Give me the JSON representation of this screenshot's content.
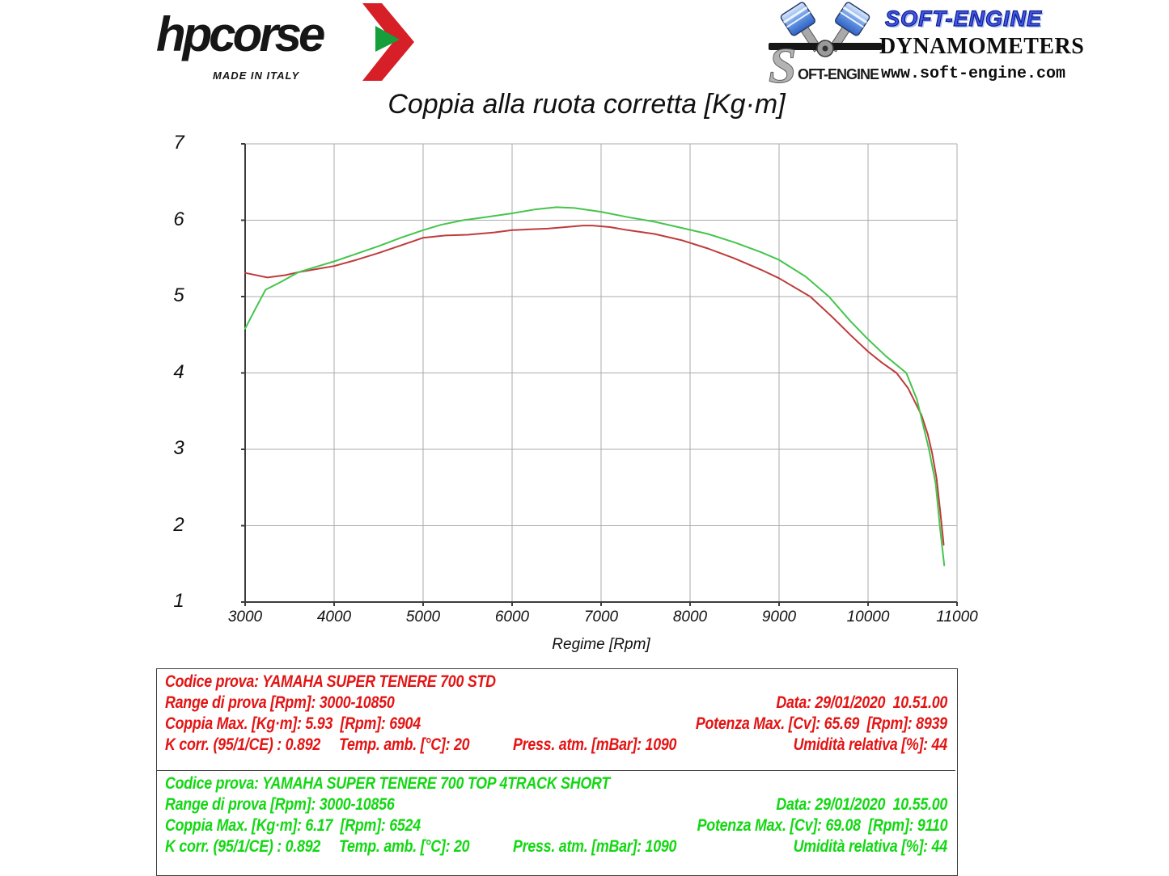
{
  "header": {
    "hpcorse": {
      "wordmark": "hpcorse",
      "made_in_italy": "MADE IN ITALY",
      "arrow_red": "#d61f26",
      "arrow_green": "#169e3a"
    },
    "softengine": {
      "logo_s": "S",
      "logo_rest": "OFT-ENGINE",
      "brand": "SOFT-ENGINE",
      "subtitle": "DYNAMOMETERS",
      "url": "www.soft-engine.com",
      "brand_color": "#4257e8"
    }
  },
  "title": "Coppia alla ruota corretta [Kg·m]",
  "chart_data": {
    "type": "line",
    "title": "Coppia alla ruota corretta [Kg·m]",
    "xlabel": "Regime [Rpm]",
    "ylabel": "",
    "xlim": [
      3000,
      11000
    ],
    "ylim": [
      1,
      7
    ],
    "x_ticks": [
      3000,
      4000,
      5000,
      6000,
      7000,
      8000,
      9000,
      10000,
      11000
    ],
    "y_ticks": [
      1,
      2,
      3,
      4,
      5,
      6,
      7
    ],
    "grid": true,
    "grid_color": "#ababab",
    "axis_color": "#3c3c3c",
    "legend_position": "none",
    "series": [
      {
        "name": "YAMAHA SUPER TENERE 700 STD",
        "color": "#bf3b3b",
        "points": [
          [
            3000,
            5.31
          ],
          [
            3250,
            5.25
          ],
          [
            3450,
            5.28
          ],
          [
            3600,
            5.32
          ],
          [
            3800,
            5.36
          ],
          [
            4000,
            5.4
          ],
          [
            4250,
            5.48
          ],
          [
            4500,
            5.57
          ],
          [
            4750,
            5.67
          ],
          [
            5000,
            5.77
          ],
          [
            5250,
            5.8
          ],
          [
            5500,
            5.81
          ],
          [
            5800,
            5.84
          ],
          [
            6000,
            5.87
          ],
          [
            6200,
            5.88
          ],
          [
            6400,
            5.89
          ],
          [
            6600,
            5.91
          ],
          [
            6800,
            5.93
          ],
          [
            6904,
            5.93
          ],
          [
            7100,
            5.91
          ],
          [
            7300,
            5.87
          ],
          [
            7600,
            5.82
          ],
          [
            7900,
            5.74
          ],
          [
            8200,
            5.63
          ],
          [
            8500,
            5.5
          ],
          [
            8800,
            5.35
          ],
          [
            9000,
            5.24
          ],
          [
            9350,
            5.0
          ],
          [
            9600,
            4.73
          ],
          [
            9800,
            4.5
          ],
          [
            10000,
            4.28
          ],
          [
            10150,
            4.14
          ],
          [
            10320,
            4.0
          ],
          [
            10450,
            3.8
          ],
          [
            10600,
            3.45
          ],
          [
            10670,
            3.2
          ],
          [
            10720,
            2.95
          ],
          [
            10770,
            2.62
          ],
          [
            10810,
            2.2
          ],
          [
            10850,
            1.75
          ]
        ]
      },
      {
        "name": "YAMAHA SUPER TENERE 700 TOP 4TRACK SHORT",
        "color": "#44c54c",
        "points": [
          [
            3000,
            4.58
          ],
          [
            3120,
            4.85
          ],
          [
            3230,
            5.09
          ],
          [
            3400,
            5.19
          ],
          [
            3600,
            5.32
          ],
          [
            3800,
            5.39
          ],
          [
            4000,
            5.46
          ],
          [
            4250,
            5.56
          ],
          [
            4500,
            5.66
          ],
          [
            4750,
            5.77
          ],
          [
            5000,
            5.87
          ],
          [
            5200,
            5.94
          ],
          [
            5450,
            6.0
          ],
          [
            5700,
            6.04
          ],
          [
            6000,
            6.09
          ],
          [
            6250,
            6.14
          ],
          [
            6500,
            6.17
          ],
          [
            6700,
            6.16
          ],
          [
            7000,
            6.11
          ],
          [
            7300,
            6.04
          ],
          [
            7600,
            5.98
          ],
          [
            7900,
            5.9
          ],
          [
            8200,
            5.82
          ],
          [
            8500,
            5.71
          ],
          [
            8800,
            5.58
          ],
          [
            9000,
            5.48
          ],
          [
            9300,
            5.26
          ],
          [
            9560,
            5.0
          ],
          [
            9800,
            4.68
          ],
          [
            10000,
            4.44
          ],
          [
            10200,
            4.22
          ],
          [
            10430,
            4.0
          ],
          [
            10550,
            3.65
          ],
          [
            10685,
            3.0
          ],
          [
            10760,
            2.55
          ],
          [
            10806,
            2.0
          ],
          [
            10856,
            1.48
          ]
        ]
      }
    ]
  },
  "info_box": {
    "tests": [
      {
        "color": "#e41414",
        "codice": "Codice prova: YAMAHA SUPER TENERE 700 STD",
        "range": "Range di prova [Rpm]: 3000-10850",
        "data": "Data: 29/01/2020  10.51.00",
        "coppia_max": "Coppia Max. [Kg·m]: 5.93  [Rpm]: 6904",
        "potenza_max": "Potenza Max. [Cv]: 65.69  [Rpm]: 8939",
        "k_corr": "K corr. (95/1/CE) : 0.892",
        "temp": "Temp. amb. [°C]: 20",
        "press": "Press. atm. [mBar]: 1090",
        "umidita": "Umidità relativa [%]: 44"
      },
      {
        "color": "#12d812",
        "codice": "Codice prova: YAMAHA SUPER TENERE 700 TOP 4TRACK SHORT",
        "range": "Range di prova [Rpm]: 3000-10856",
        "data": "Data: 29/01/2020  10.55.00",
        "coppia_max": "Coppia Max. [Kg·m]: 6.17  [Rpm]: 6524",
        "potenza_max": "Potenza Max. [Cv]: 69.08  [Rpm]: 9110",
        "k_corr": "K corr. (95/1/CE) : 0.892",
        "temp": "Temp. amb. [°C]: 20",
        "press": "Press. atm. [mBar]: 1090",
        "umidita": "Umidità relativa [%]: 44"
      }
    ]
  }
}
